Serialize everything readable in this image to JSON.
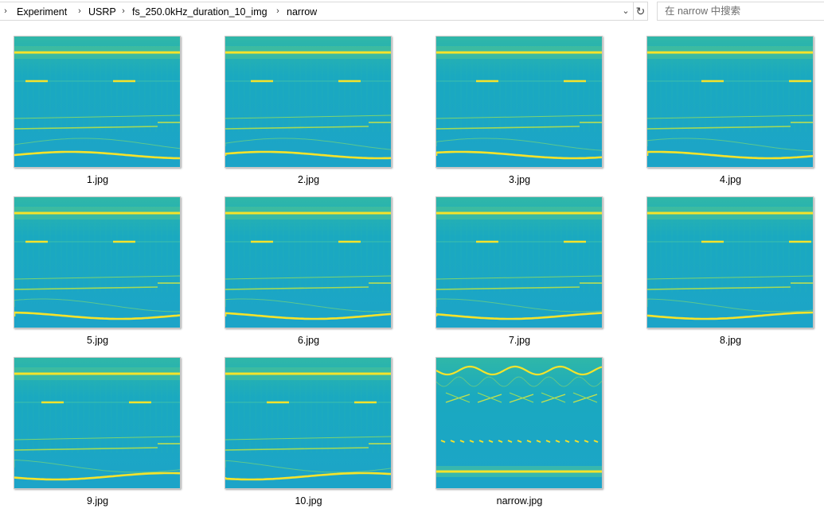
{
  "breadcrumb": {
    "items": [
      "Experiment",
      "USRP",
      "fs_250.0kHz_duration_10_img",
      "narrow"
    ]
  },
  "search": {
    "placeholder": "在 narrow 中搜索"
  },
  "files": [
    {
      "name": "1.jpg"
    },
    {
      "name": "2.jpg"
    },
    {
      "name": "3.jpg"
    },
    {
      "name": "4.jpg"
    },
    {
      "name": "5.jpg"
    },
    {
      "name": "6.jpg"
    },
    {
      "name": "7.jpg"
    },
    {
      "name": "8.jpg"
    },
    {
      "name": "9.jpg"
    },
    {
      "name": "10.jpg"
    },
    {
      "name": "narrow.jpg"
    }
  ],
  "icons": {
    "breadcrumb_separator": "chevron-right-icon",
    "address_dropdown": "chevron-down-icon",
    "refresh": "refresh-icon"
  },
  "colors": {
    "spectrogram_background": "#1aa7c4",
    "spectrogram_line": "#f6e32a",
    "spectrogram_faint": "#8fd66a"
  }
}
